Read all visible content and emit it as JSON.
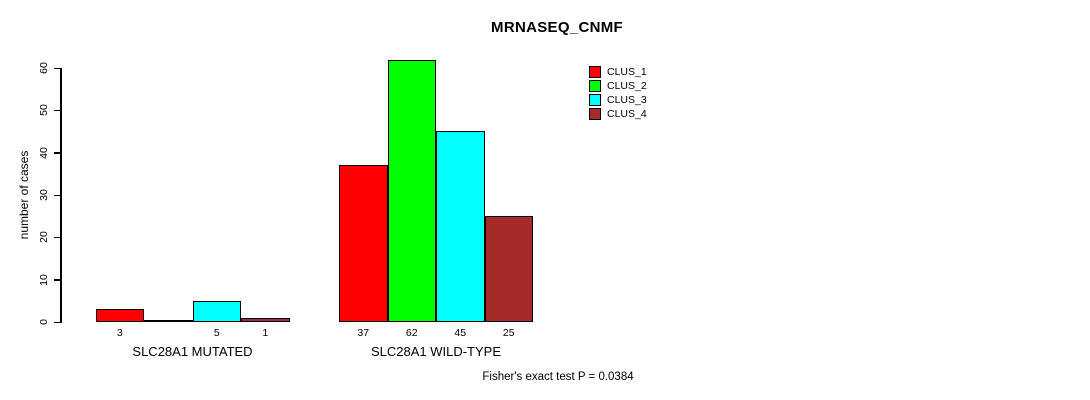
{
  "chart_data": {
    "type": "bar",
    "title": "MRNASEQ_CNMF",
    "ylabel": "number of cases",
    "xlabel": "",
    "ylim": [
      0,
      62
    ],
    "yticks": [
      0,
      10,
      20,
      30,
      40,
      50,
      60
    ],
    "grid": false,
    "categories": [
      "SLC28A1 MUTATED",
      "SLC28A1 WILD-TYPE"
    ],
    "series": [
      {
        "name": "CLUS_1",
        "color": "#ff0000",
        "values": [
          3,
          37
        ]
      },
      {
        "name": "CLUS_2",
        "color": "#00ff00",
        "values": [
          0,
          62
        ]
      },
      {
        "name": "CLUS_3",
        "color": "#00ffff",
        "values": [
          5,
          45
        ]
      },
      {
        "name": "CLUS_4",
        "color": "#a52a2a",
        "values": [
          1,
          25
        ]
      }
    ],
    "bar_value_labels": [
      [
        "3",
        "",
        "5",
        "1"
      ],
      [
        "37",
        "62",
        "45",
        "25"
      ]
    ],
    "legend": {
      "position": "top-right",
      "entries": [
        "CLUS_1",
        "CLUS_2",
        "CLUS_3",
        "CLUS_4"
      ]
    },
    "annotation": "Fisher's exact test P = 0.0384",
    "axis_color": "#000000",
    "background_color": "#ffffff"
  }
}
